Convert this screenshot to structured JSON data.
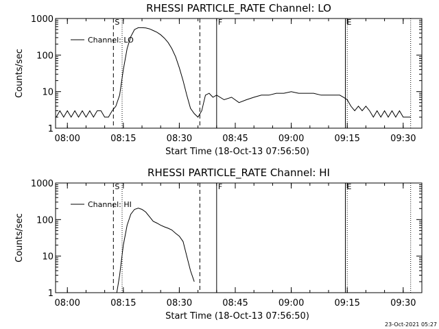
{
  "figure": {
    "timestamp": "23-Oct-2021 05:27"
  },
  "chart_data": [
    {
      "type": "line",
      "title": "RHESSI PARTICLE_RATE Channel: LO",
      "xlabel": "Start Time (18-Oct-13 07:56:50)",
      "ylabel": "Counts/sec",
      "legend": {
        "label": "Channel: LO",
        "placement": "top-left"
      },
      "yscale": "log",
      "ylim": [
        1,
        1000
      ],
      "xlim": [
        "07:56:50",
        "09:35:00"
      ],
      "x_ticks": [
        "08:00",
        "08:15",
        "08:30",
        "08:45",
        "09:00",
        "09:15",
        "09:30"
      ],
      "y_ticks": [
        "1",
        "10",
        "100",
        "1000"
      ],
      "grid": false,
      "event_lines": [
        {
          "label": "S",
          "time": "08:12:20",
          "style": "dashed"
        },
        {
          "label": "",
          "time": "08:14:40",
          "style": "dotted"
        },
        {
          "label": "",
          "time": "08:35:30",
          "style": "dashed"
        },
        {
          "label": "F",
          "time": "08:40:00",
          "style": "solid"
        },
        {
          "label": "E",
          "time": "09:14:30",
          "style": "solid"
        },
        {
          "label": "",
          "time": "09:15:00",
          "style": "dotted"
        },
        {
          "label": "",
          "time": "09:32:00",
          "style": "dotted"
        }
      ],
      "series": [
        {
          "name": "Channel: LO",
          "x": [
            "07:57:00",
            "07:58:00",
            "07:59:00",
            "08:00:00",
            "08:01:00",
            "08:02:00",
            "08:03:00",
            "08:04:00",
            "08:05:00",
            "08:06:00",
            "08:07:00",
            "08:08:00",
            "08:09:00",
            "08:10:00",
            "08:11:00",
            "08:12:00",
            "08:13:00",
            "08:14:00",
            "08:15:00",
            "08:16:00",
            "08:17:00",
            "08:18:00",
            "08:19:00",
            "08:20:00",
            "08:21:00",
            "08:22:00",
            "08:23:00",
            "08:24:00",
            "08:25:00",
            "08:26:00",
            "08:27:00",
            "08:28:00",
            "08:29:00",
            "08:30:00",
            "08:31:00",
            "08:32:00",
            "08:33:00",
            "08:34:00",
            "08:35:00",
            "08:36:00",
            "08:37:00",
            "08:38:00",
            "08:39:00",
            "08:40:00",
            "08:42:00",
            "08:44:00",
            "08:46:00",
            "08:48:00",
            "08:50:00",
            "08:52:00",
            "08:54:00",
            "08:56:00",
            "08:58:00",
            "09:00:00",
            "09:02:00",
            "09:04:00",
            "09:06:00",
            "09:08:00",
            "09:10:00",
            "09:12:00",
            "09:13:00",
            "09:14:00",
            "09:15:00",
            "09:16:00",
            "09:17:00",
            "09:18:00",
            "09:19:00",
            "09:20:00",
            "09:21:00",
            "09:22:00",
            "09:23:00",
            "09:24:00",
            "09:25:00",
            "09:26:00",
            "09:27:00",
            "09:28:00",
            "09:29:00",
            "09:30:00",
            "09:31:00",
            "09:32:00"
          ],
          "y": [
            2,
            3,
            2,
            3,
            2,
            3,
            2,
            3,
            2,
            3,
            2,
            3,
            3,
            2,
            2,
            3,
            4,
            8,
            40,
            150,
            320,
            500,
            560,
            560,
            550,
            520,
            470,
            420,
            360,
            290,
            220,
            150,
            90,
            45,
            20,
            8,
            3.5,
            2.5,
            2,
            3,
            8,
            9,
            7,
            8,
            6,
            7,
            5,
            6,
            7,
            8,
            8,
            9,
            9,
            10,
            9,
            9,
            9,
            8,
            8,
            8,
            8,
            7,
            6,
            4,
            3,
            4,
            3,
            4,
            3,
            2,
            3,
            2,
            3,
            2,
            3,
            2,
            3,
            2,
            2,
            2
          ]
        }
      ]
    },
    {
      "type": "line",
      "title": "RHESSI PARTICLE_RATE Channel: HI",
      "xlabel": "Start Time (18-Oct-13 07:56:50)",
      "ylabel": "Counts/sec",
      "legend": {
        "label": "Channel: HI",
        "placement": "top-left"
      },
      "yscale": "log",
      "ylim": [
        1,
        1000
      ],
      "xlim": [
        "07:56:50",
        "09:35:00"
      ],
      "x_ticks": [
        "08:00",
        "08:15",
        "08:30",
        "08:45",
        "09:00",
        "09:15",
        "09:30"
      ],
      "y_ticks": [
        "1",
        "10",
        "100",
        "1000"
      ],
      "grid": false,
      "event_lines": [
        {
          "label": "S",
          "time": "08:12:20",
          "style": "dashed"
        },
        {
          "label": "",
          "time": "08:14:40",
          "style": "dotted"
        },
        {
          "label": "",
          "time": "08:35:30",
          "style": "dashed"
        },
        {
          "label": "F",
          "time": "08:40:00",
          "style": "solid"
        },
        {
          "label": "E",
          "time": "09:14:30",
          "style": "solid"
        },
        {
          "label": "",
          "time": "09:15:00",
          "style": "dotted"
        },
        {
          "label": "",
          "time": "09:32:00",
          "style": "dotted"
        }
      ],
      "series": [
        {
          "name": "Channel: HI",
          "x": [
            "08:13:15",
            "08:14:00",
            "08:15:00",
            "08:16:00",
            "08:17:00",
            "08:18:00",
            "08:19:00",
            "08:20:00",
            "08:21:00",
            "08:22:00",
            "08:23:00",
            "08:24:00",
            "08:25:00",
            "08:26:00",
            "08:27:00",
            "08:28:00",
            "08:29:00",
            "08:30:00",
            "08:31:00",
            "08:32:00",
            "08:33:00",
            "08:34:00"
          ],
          "y": [
            1,
            3,
            20,
            70,
            140,
            190,
            205,
            190,
            160,
            120,
            90,
            80,
            70,
            63,
            58,
            52,
            42,
            35,
            25,
            10,
            4,
            2
          ]
        }
      ]
    }
  ]
}
